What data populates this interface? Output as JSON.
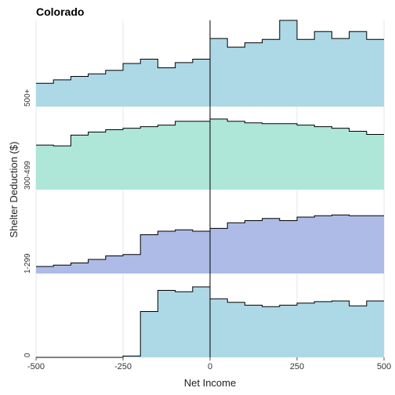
{
  "chart_data": {
    "type": "area",
    "title": "Colorado",
    "xlabel": "Net Income",
    "ylabel": "Shelter Deduction ($)",
    "xlim": [
      -500,
      500
    ],
    "x_ticks": [
      -500,
      -250,
      0,
      250,
      500
    ],
    "x_tick_labels": [
      "-500",
      "-250",
      "0",
      "250",
      "500"
    ],
    "bin_edges": [
      -500,
      -450,
      -400,
      -350,
      -300,
      -250,
      -200,
      -150,
      -100,
      -50,
      0,
      50,
      100,
      150,
      200,
      250,
      300,
      350,
      400,
      450,
      500
    ],
    "reference_line_x": 0,
    "series": [
      {
        "name": "500+",
        "color": "#add8e6",
        "values": [
          0.27,
          0.31,
          0.35,
          0.38,
          0.42,
          0.5,
          0.55,
          0.45,
          0.51,
          0.55,
          0.79,
          0.69,
          0.74,
          0.78,
          1.0,
          0.78,
          0.87,
          0.79,
          0.87,
          0.78
        ]
      },
      {
        "name": "300-499",
        "color": "#aee6d8",
        "values": [
          0.58,
          0.57,
          0.71,
          0.75,
          0.78,
          0.8,
          0.82,
          0.84,
          0.89,
          0.89,
          0.92,
          0.89,
          0.87,
          0.86,
          0.86,
          0.84,
          0.82,
          0.8,
          0.76,
          0.72
        ]
      },
      {
        "name": "1-299",
        "color": "#adbbe6",
        "values": [
          0.1,
          0.12,
          0.15,
          0.2,
          0.25,
          0.27,
          0.55,
          0.6,
          0.62,
          0.6,
          0.64,
          0.72,
          0.75,
          0.78,
          0.75,
          0.8,
          0.82,
          0.83,
          0.82,
          0.82
        ]
      },
      {
        "name": "0",
        "color": "#add8e6",
        "values": [
          0.0,
          0.0,
          0.0,
          0.0,
          0.0,
          0.02,
          0.65,
          0.95,
          0.93,
          1.0,
          0.83,
          0.78,
          0.74,
          0.72,
          0.74,
          0.77,
          0.79,
          0.8,
          0.73,
          0.8
        ]
      }
    ]
  }
}
